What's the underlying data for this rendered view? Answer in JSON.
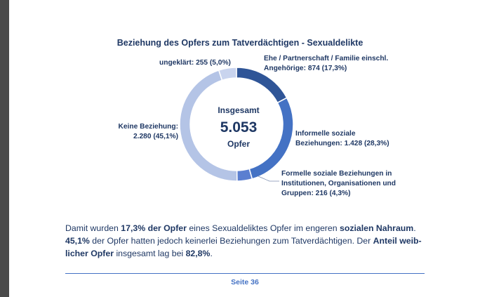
{
  "chart_data": {
    "type": "pie",
    "variant": "donut",
    "title": "Beziehung des Opfers zum Tatverdächtigen - Sexualdelikte",
    "center": {
      "line1": "Insgesamt",
      "value": "5.053",
      "line3": "Opfer"
    },
    "slices": [
      {
        "line1": "Ehe / Partnerschaft / Familie einschl.",
        "line2": "Angehörige: 874 (17,3%)",
        "value": 874,
        "percent": 17.3,
        "color": "#2f5597"
      },
      {
        "line1": "Informelle soziale",
        "line2": "Beziehungen: 1.428 (28,3%)",
        "value": 1428,
        "percent": 28.3,
        "color": "#4472c4"
      },
      {
        "line1": "Formelle soziale Beziehungen in",
        "line2": "Institutionen, Organisationen und",
        "line3": "Gruppen: 216 (4,3%)",
        "value": 216,
        "percent": 4.3,
        "color": "#5b7fd0"
      },
      {
        "line1": "Keine Beziehung:",
        "line2": "2.280 (45,1%)",
        "value": 2280,
        "percent": 45.1,
        "color": "#b4c4e6"
      },
      {
        "line1": "ungeklärt: 255 (5,0%)",
        "value": 255,
        "percent": 5.0,
        "color": "#c9d4ee"
      }
    ]
  },
  "paragraph": {
    "s1": "Damit wurden ",
    "b1": "17,3% der Opfer",
    "s2": " eines Sexualdeliktes Opfer im engeren ",
    "b2": "sozialen Nahraum",
    "s3": ".",
    "b3": "45,1%",
    "s4": " der Opfer hatten jedoch keinerlei Beziehungen zum Tatverdächtigen. Der ",
    "b4": "Anteil weib-",
    "b5": "licher Opfer",
    "s5": " insgesamt lag bei ",
    "b6": "82,8%",
    "s6": "."
  },
  "footer": {
    "page": "Seite 36"
  }
}
